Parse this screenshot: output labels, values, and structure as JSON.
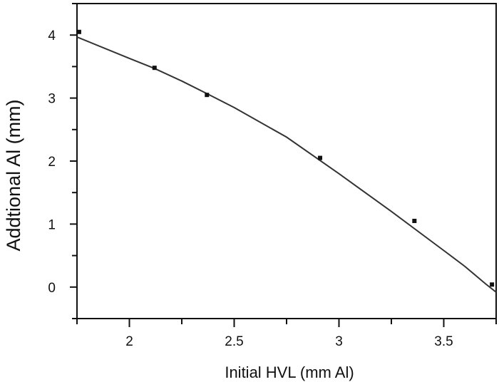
{
  "chart_data": {
    "type": "scatter",
    "xlabel": "Initial HVL (mm Al)",
    "ylabel": "Addtional Al (mm)",
    "xlim": [
      1.75,
      3.75
    ],
    "ylim": [
      -0.5,
      4.5
    ],
    "xticks": [
      2,
      2.5,
      3,
      3.5
    ],
    "xtick_labels": [
      "2",
      "2.5",
      "3",
      "3.5"
    ],
    "yticks": [
      0,
      1,
      2,
      3,
      4
    ],
    "ytick_labels": [
      "0",
      "1",
      "2",
      "3",
      "4"
    ],
    "grid": false,
    "legend": "none",
    "series": [
      {
        "kind": "points",
        "x": [
          1.76,
          2.12,
          2.37,
          2.91,
          3.36,
          3.73
        ],
        "y": [
          4.05,
          3.48,
          3.05,
          2.05,
          1.05,
          0.04
        ]
      },
      {
        "kind": "fit-line",
        "x": [
          1.75,
          2.0,
          2.12,
          2.25,
          2.37,
          2.5,
          2.75,
          3.0,
          3.25,
          3.5,
          3.6,
          3.7,
          3.75
        ],
        "y": [
          3.97,
          3.63,
          3.47,
          3.27,
          3.07,
          2.85,
          2.38,
          1.8,
          1.2,
          0.58,
          0.33,
          0.05,
          -0.08
        ]
      }
    ],
    "colors": {
      "axis": "#111111",
      "line": "#333333",
      "points": "#111111"
    }
  }
}
